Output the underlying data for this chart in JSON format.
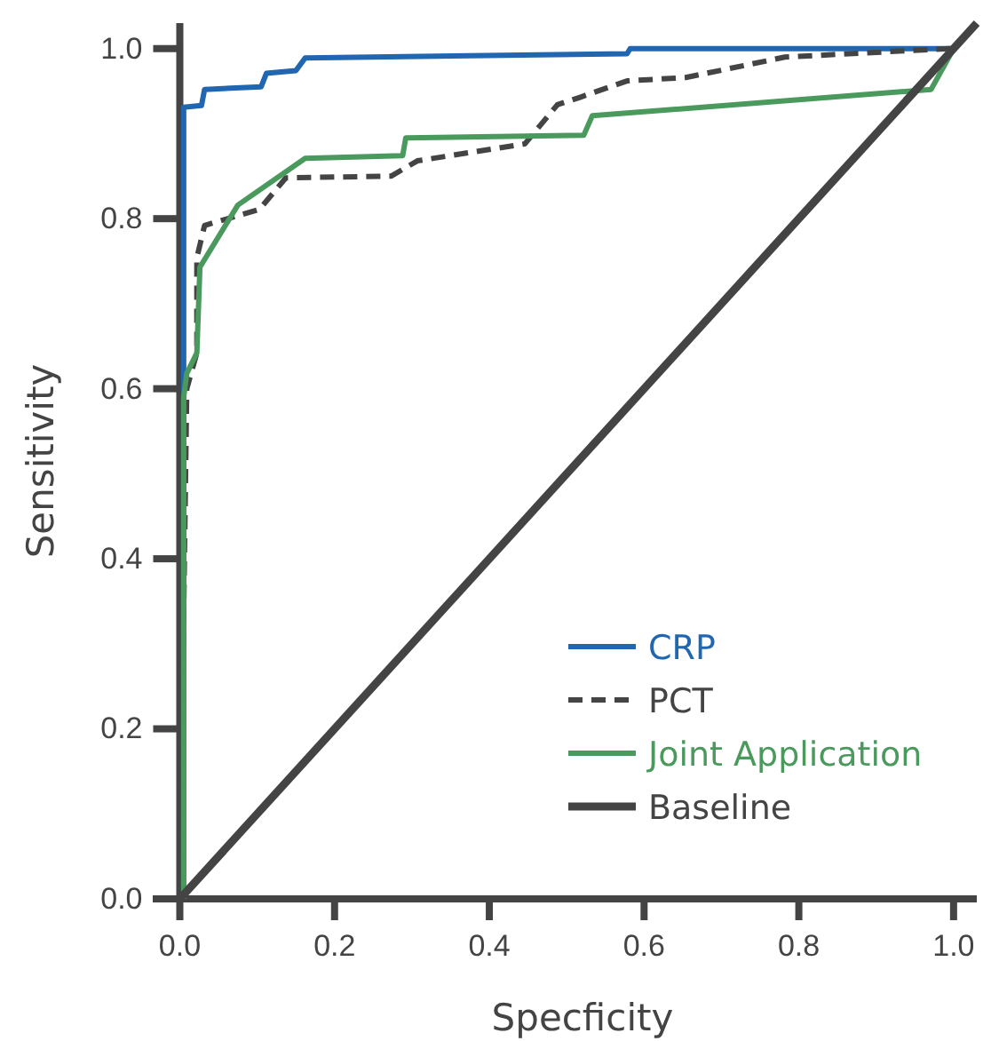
{
  "chart_data": {
    "type": "line",
    "xlabel": "Specficity",
    "ylabel": "Sensitivity",
    "xlim": [
      -0.035,
      1.03
    ],
    "ylim": [
      0,
      1.03
    ],
    "xticks": [
      {
        "value": 0,
        "label": "0.0"
      },
      0.2,
      0.4,
      0.6,
      0.8,
      {
        "value": 1,
        "label": "1.0"
      }
    ],
    "yticks": [
      {
        "value": 0,
        "label": "0.0"
      },
      0.2,
      0.4,
      0.6,
      0.8,
      {
        "value": 1,
        "label": "1.0"
      }
    ],
    "grid": false,
    "legend": "bottom right",
    "marker": "none",
    "series": [
      {
        "name": "CRP",
        "color": "#2166b0",
        "line_style": "solid",
        "x": [
          0.005,
          0.005,
          0.028,
          0.032,
          0.105,
          0.112,
          0.15,
          0.162,
          0.578,
          0.582,
          1.0
        ],
        "values": [
          0,
          0.931,
          0.933,
          0.952,
          0.955,
          0.971,
          0.974,
          0.989,
          0.994,
          1.0,
          1.0
        ]
      },
      {
        "name": "PCT",
        "color": "#444444",
        "line_style": "dashed",
        "x": [
          0,
          0.009,
          0.022,
          0.022,
          0.032,
          0.103,
          0.137,
          0.273,
          0.307,
          0.446,
          0.488,
          0.518,
          0.578,
          0.654,
          0.782,
          0.993,
          1.0
        ],
        "values": [
          0,
          0.6,
          0.642,
          0.754,
          0.792,
          0.811,
          0.848,
          0.85,
          0.868,
          0.888,
          0.934,
          0.943,
          0.962,
          0.966,
          0.99,
          1.0,
          1.0
        ]
      },
      {
        "name": "Joint Application",
        "color": "#4a9a5e",
        "line_style": "solid",
        "x": [
          0.005,
          0.005,
          0.009,
          0.022,
          0.026,
          0.075,
          0.162,
          0.288,
          0.292,
          0.522,
          0.533,
          0.971,
          1.0
        ],
        "values": [
          0,
          0.59,
          0.618,
          0.642,
          0.743,
          0.816,
          0.871,
          0.874,
          0.895,
          0.898,
          0.921,
          0.952,
          1.0
        ]
      },
      {
        "name": "Baseline",
        "color": "#444444",
        "line_style": "solid",
        "x": [
          0,
          1.03
        ],
        "values": [
          0,
          1.03
        ]
      }
    ]
  }
}
